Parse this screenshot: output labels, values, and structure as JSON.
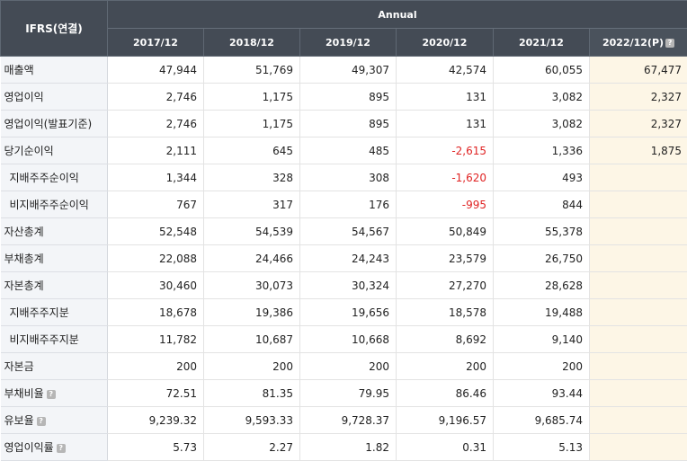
{
  "header": {
    "label": "IFRS(연결)",
    "annual": "Annual",
    "years": [
      "2017/12",
      "2018/12",
      "2019/12",
      "2020/12",
      "2021/12",
      "2022/12(P)"
    ],
    "help_glyph": "?"
  },
  "rows": [
    {
      "label": "매출액",
      "sub": false,
      "help": false,
      "values": [
        "47,944",
        "51,769",
        "49,307",
        "42,574",
        "60,055",
        "67,477"
      ]
    },
    {
      "label": "영업이익",
      "sub": false,
      "help": false,
      "values": [
        "2,746",
        "1,175",
        "895",
        "131",
        "3,082",
        "2,327"
      ]
    },
    {
      "label": "영업이익(발표기준)",
      "sub": false,
      "help": false,
      "values": [
        "2,746",
        "1,175",
        "895",
        "131",
        "3,082",
        "2,327"
      ]
    },
    {
      "label": "당기순이익",
      "sub": false,
      "help": false,
      "values": [
        "2,111",
        "645",
        "485",
        "-2,615",
        "1,336",
        "1,875"
      ]
    },
    {
      "label": "지배주주순이익",
      "sub": true,
      "help": false,
      "values": [
        "1,344",
        "328",
        "308",
        "-1,620",
        "493",
        ""
      ]
    },
    {
      "label": "비지배주주순이익",
      "sub": true,
      "help": false,
      "values": [
        "767",
        "317",
        "176",
        "-995",
        "844",
        ""
      ]
    },
    {
      "label": "자산총계",
      "sub": false,
      "help": false,
      "values": [
        "52,548",
        "54,539",
        "54,567",
        "50,849",
        "55,378",
        ""
      ]
    },
    {
      "label": "부채총계",
      "sub": false,
      "help": false,
      "values": [
        "22,088",
        "24,466",
        "24,243",
        "23,579",
        "26,750",
        ""
      ]
    },
    {
      "label": "자본총계",
      "sub": false,
      "help": false,
      "values": [
        "30,460",
        "30,073",
        "30,324",
        "27,270",
        "28,628",
        ""
      ]
    },
    {
      "label": "지배주주지분",
      "sub": true,
      "help": false,
      "values": [
        "18,678",
        "19,386",
        "19,656",
        "18,578",
        "19,488",
        ""
      ]
    },
    {
      "label": "비지배주주지분",
      "sub": true,
      "help": false,
      "values": [
        "11,782",
        "10,687",
        "10,668",
        "8,692",
        "9,140",
        ""
      ]
    },
    {
      "label": "자본금",
      "sub": false,
      "help": false,
      "values": [
        "200",
        "200",
        "200",
        "200",
        "200",
        ""
      ]
    },
    {
      "label": "부채비율",
      "sub": false,
      "help": true,
      "values": [
        "72.51",
        "81.35",
        "79.95",
        "86.46",
        "93.44",
        ""
      ]
    },
    {
      "label": "유보율",
      "sub": false,
      "help": true,
      "values": [
        "9,239.32",
        "9,593.33",
        "9,728.37",
        "9,196.57",
        "9,685.74",
        ""
      ]
    },
    {
      "label": "영업이익률",
      "sub": false,
      "help": true,
      "values": [
        "5.73",
        "2.27",
        "1.82",
        "0.31",
        "5.13",
        ""
      ]
    }
  ],
  "colors": {
    "header_bg": "#444b55",
    "estimate_bg": "#fdf6e6",
    "negative": "#e02424",
    "label_bg": "#f3f5f8"
  },
  "icons": {
    "help": "question-icon"
  }
}
